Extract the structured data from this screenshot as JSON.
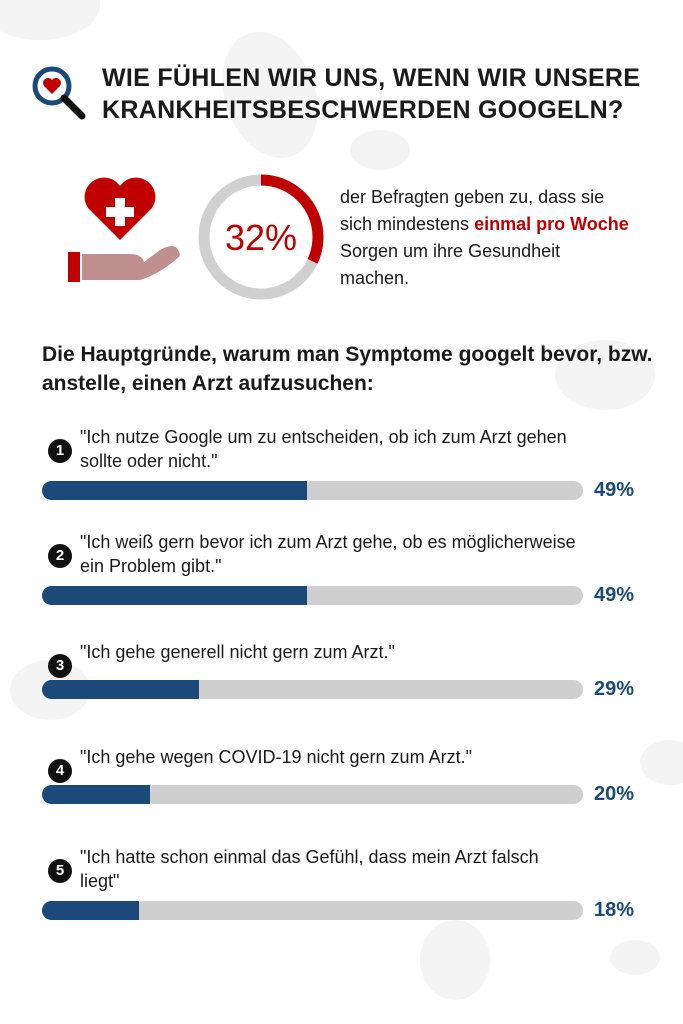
{
  "title": [
    "WIE FÜHLEN WIR UNS, WENN WIR UNSERE",
    "KRANKHEITSBESCHWERDEN GOOGELN?"
  ],
  "stat": {
    "value": 32,
    "label": "32%",
    "text_before": "der Befragten geben zu, dass sie sich mindestens ",
    "highlight": "einmal pro Woche",
    "text_after": " Sorgen um ihre Gesundheit machen."
  },
  "subheading": "Die Hauptgründe, warum man Symptome googelt bevor, bzw. anstelle, einen Arzt aufzusuchen:",
  "colors": {
    "accent_red": "#c00000",
    "bar_fill": "#1b4a7a",
    "bar_track": "#cfcfcf"
  },
  "chart_data": {
    "type": "bar",
    "orientation": "horizontal",
    "xlim": [
      0,
      100
    ],
    "categories": [
      "\"Ich nutze Google um zu entscheiden, ob ich zum Arzt gehen sollte oder nicht.\"",
      "\"Ich weiß gern bevor ich zum Arzt gehe, ob es möglicherweise ein Problem gibt.\"",
      "\"Ich gehe generell nicht gern zum Arzt.\"",
      "\"Ich gehe wegen COVID-19 nicht gern zum Arzt.\"",
      "\"Ich hatte schon einmal das Gefühl, dass mein Arzt falsch liegt\""
    ],
    "numbers": [
      "1",
      "2",
      "3",
      "4",
      "5"
    ],
    "values": [
      49,
      49,
      29,
      20,
      18
    ],
    "labels": [
      "49%",
      "49%",
      "29%",
      "20%",
      "18%"
    ]
  }
}
